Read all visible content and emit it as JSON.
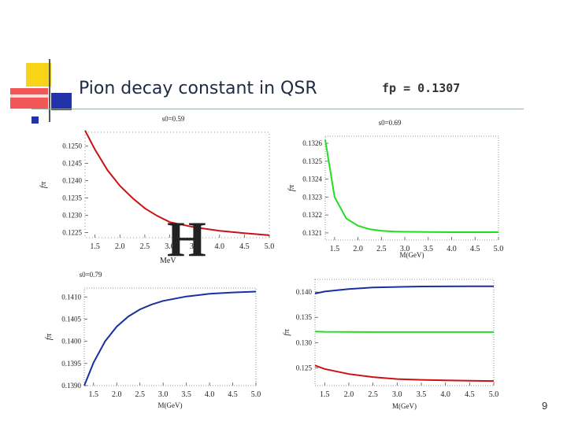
{
  "slide": {
    "title": "Pion decay constant in QSR",
    "formula": "fp = 0.1307",
    "page_number": "9",
    "overlay_letter": "H",
    "overlay_unit": "MeV"
  },
  "chart_data": [
    {
      "type": "line",
      "panel": "top-left",
      "title": "s0=0.59",
      "xlabel": "",
      "ylabel": "fπ",
      "xlim": [
        1.3,
        5.0
      ],
      "ylim": [
        0.12235,
        0.1254
      ],
      "xticks": [
        "1.5",
        "2.0",
        "2.5",
        "3.0",
        "3.5",
        "4.0",
        "4.5",
        "5.0"
      ],
      "yticks": [
        "0.1225",
        "0.1230",
        "0.1235",
        "0.1240",
        "0.1245",
        "0.1250"
      ],
      "series": [
        {
          "name": "red",
          "color": "#cc1111",
          "x": [
            1.3,
            1.5,
            1.75,
            2.0,
            2.25,
            2.5,
            2.75,
            3.0,
            3.5,
            4.0,
            4.5,
            5.0
          ],
          "values": [
            0.12545,
            0.1249,
            0.1243,
            0.12385,
            0.1235,
            0.1232,
            0.12298,
            0.1228,
            0.12265,
            0.12255,
            0.12248,
            0.12242
          ]
        }
      ]
    },
    {
      "type": "line",
      "panel": "top-right",
      "title": "s0=0.69",
      "xlabel": "M(GeV)",
      "ylabel": "fπ",
      "xlim": [
        1.3,
        5.0
      ],
      "ylim": [
        0.13206,
        0.13264
      ],
      "xticks": [
        "1.5",
        "2.0",
        "2.5",
        "3.0",
        "3.5",
        "4.0",
        "4.5",
        "5.0"
      ],
      "yticks": [
        "0.1321",
        "0.1322",
        "0.1323",
        "0.1324",
        "0.1325",
        "0.1326"
      ],
      "series": [
        {
          "name": "green",
          "color": "#22dd22",
          "x": [
            1.3,
            1.5,
            1.75,
            2.0,
            2.25,
            2.5,
            2.75,
            3.0,
            3.5,
            4.0,
            4.5,
            5.0
          ],
          "values": [
            0.13262,
            0.1323,
            0.13218,
            0.13214,
            0.13212,
            0.132112,
            0.132108,
            0.132106,
            0.132105,
            0.132104,
            0.132104,
            0.132104
          ]
        }
      ]
    },
    {
      "type": "line",
      "panel": "bottom-left",
      "title": "s0=0.79",
      "xlabel": "M(GeV)",
      "ylabel": "fπ",
      "xlim": [
        1.3,
        5.0
      ],
      "ylim": [
        0.139,
        0.1412
      ],
      "xticks": [
        "1.5",
        "2.0",
        "2.5",
        "3.0",
        "3.5",
        "4.0",
        "4.5",
        "5.0"
      ],
      "yticks": [
        "0.1390",
        "0.1395",
        "0.1400",
        "0.1405",
        "0.1410"
      ],
      "series": [
        {
          "name": "blue",
          "color": "#1a2fa0",
          "x": [
            1.3,
            1.5,
            1.75,
            2.0,
            2.25,
            2.5,
            2.75,
            3.0,
            3.5,
            4.0,
            4.5,
            5.0
          ],
          "values": [
            0.139,
            0.13952,
            0.14,
            0.14033,
            0.14056,
            0.14072,
            0.14083,
            0.14091,
            0.14101,
            0.14107,
            0.1411,
            0.14112
          ]
        }
      ]
    },
    {
      "type": "line",
      "panel": "bottom-right",
      "title": "",
      "xlabel": "M(GeV)",
      "ylabel": "fπ",
      "xlim": [
        1.3,
        5.0
      ],
      "ylim": [
        0.1215,
        0.1425
      ],
      "xticks": [
        "1.5",
        "2.0",
        "2.5",
        "3.0",
        "3.5",
        "4.0",
        "4.5",
        "5.0"
      ],
      "yticks": [
        "0.125",
        "0.130",
        "0.135",
        "0.140"
      ],
      "series": [
        {
          "name": "blue",
          "color": "#1a2fa0",
          "x": [
            1.3,
            1.5,
            2.0,
            2.5,
            3.0,
            3.5,
            4.0,
            4.5,
            5.0
          ],
          "values": [
            0.1397,
            0.1401,
            0.1406,
            0.1409,
            0.141,
            0.1411,
            0.14112,
            0.14114,
            0.14115
          ]
        },
        {
          "name": "green",
          "color": "#22dd22",
          "x": [
            1.3,
            1.5,
            2.0,
            2.5,
            3.0,
            3.5,
            4.0,
            4.5,
            5.0
          ],
          "values": [
            0.1322,
            0.13214,
            0.13212,
            0.1321,
            0.1321,
            0.1321,
            0.1321,
            0.1321,
            0.1321
          ]
        },
        {
          "name": "red",
          "color": "#cc1111",
          "x": [
            1.3,
            1.5,
            2.0,
            2.5,
            3.0,
            3.5,
            4.0,
            4.5,
            5.0
          ],
          "values": [
            0.1255,
            0.1248,
            0.1238,
            0.1232,
            0.1228,
            0.12265,
            0.12255,
            0.12248,
            0.12242
          ]
        }
      ]
    }
  ]
}
